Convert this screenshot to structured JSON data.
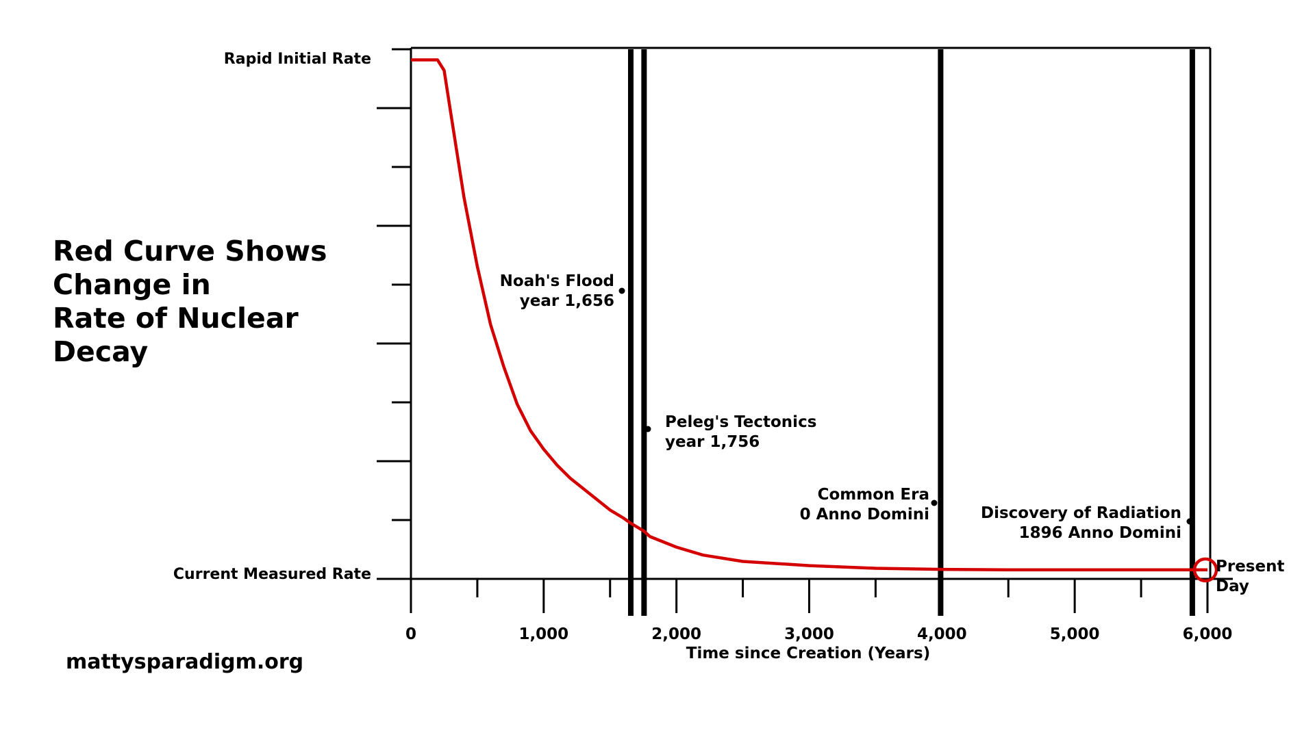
{
  "side_title": {
    "lines": [
      "Red Curve Shows",
      "Change in",
      "Rate of Nuclear",
      "Decay"
    ]
  },
  "watermark": "mattysparadigm.org",
  "colors": {
    "curve": "#d40000",
    "axes": "#000000",
    "highlight": "#d40000"
  },
  "chart_data": {
    "type": "line",
    "title": "",
    "xlabel": "Time since Creation (Years)",
    "ylabel": "",
    "xlim": [
      0,
      6000
    ],
    "ylim": [
      0,
      1
    ],
    "x_ticks": [
      0,
      1000,
      2000,
      3000,
      4000,
      5000,
      6000
    ],
    "x_tick_labels": [
      "0",
      "1,000",
      "2,000",
      "3,000",
      "4,000",
      "5,000",
      "6,000"
    ],
    "x_minor_ticks": [
      500,
      1500,
      2500,
      3500,
      4500,
      5500
    ],
    "y_tick_count": 9,
    "y_labels": {
      "top": "Rapid Initial Rate",
      "bottom": "Current Measured Rate"
    },
    "grid": false,
    "series": [
      {
        "x": [
          0,
          100,
          200,
          250,
          300,
          350,
          400,
          500,
          600,
          700,
          800,
          900,
          1000,
          1100,
          1200,
          1300,
          1400,
          1500,
          1600,
          1656,
          1756,
          1800,
          2000,
          2200,
          2500,
          3000,
          3500,
          4000,
          4500,
          5000,
          5500,
          6000
        ],
        "y": [
          0.98,
          0.98,
          0.98,
          0.96,
          0.88,
          0.8,
          0.72,
          0.59,
          0.48,
          0.4,
          0.33,
          0.28,
          0.245,
          0.215,
          0.19,
          0.17,
          0.15,
          0.13,
          0.115,
          0.105,
          0.09,
          0.08,
          0.06,
          0.045,
          0.033,
          0.025,
          0.02,
          0.018,
          0.017,
          0.017,
          0.017,
          0.017
        ]
      }
    ],
    "annotations": [
      {
        "x": 1656,
        "lines": [
          "Noah's Flood",
          "year 1,656"
        ]
      },
      {
        "x": 1756,
        "lines": [
          "Peleg's Tectonics",
          "year 1,756"
        ]
      },
      {
        "x": 3990,
        "lines": [
          "Common Era",
          "0 Anno Domini"
        ]
      },
      {
        "x": 5886,
        "lines": [
          "Discovery of Radiation",
          "1896 Anno Domini"
        ]
      },
      {
        "x": 6000,
        "lines": [
          "Present",
          "Day"
        ]
      }
    ]
  }
}
